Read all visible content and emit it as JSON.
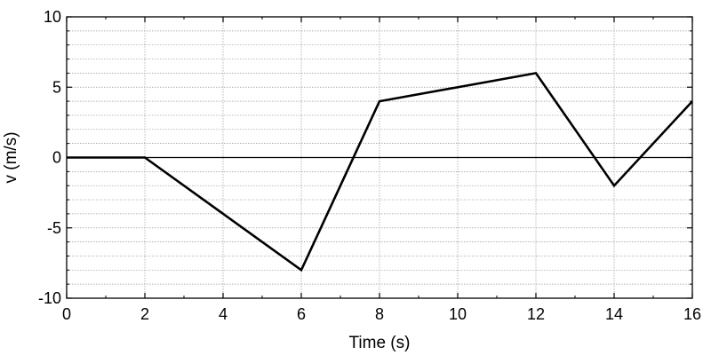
{
  "chart_data": {
    "type": "line",
    "title": "",
    "xlabel": "Time (s)",
    "ylabel": "v (m/s)",
    "xlim": [
      0,
      16
    ],
    "ylim": [
      -10,
      10
    ],
    "x_ticks": [
      0,
      2,
      4,
      6,
      8,
      10,
      12,
      14,
      16
    ],
    "y_ticks": [
      -10,
      -5,
      0,
      5,
      10
    ],
    "x_tick_labels": [
      "0",
      "2",
      "4",
      "6",
      "8",
      "10",
      "12",
      "14",
      "16"
    ],
    "y_tick_labels": [
      "-10",
      "-5",
      "0",
      "5",
      "10"
    ],
    "grid": true,
    "minor_grid_y_step": 1,
    "zero_line": true,
    "series": [
      {
        "x": [
          0,
          2,
          6,
          8,
          12,
          14,
          16
        ],
        "y": [
          0,
          0,
          -8,
          4,
          6,
          -2,
          4
        ],
        "color": "#000000"
      }
    ]
  }
}
